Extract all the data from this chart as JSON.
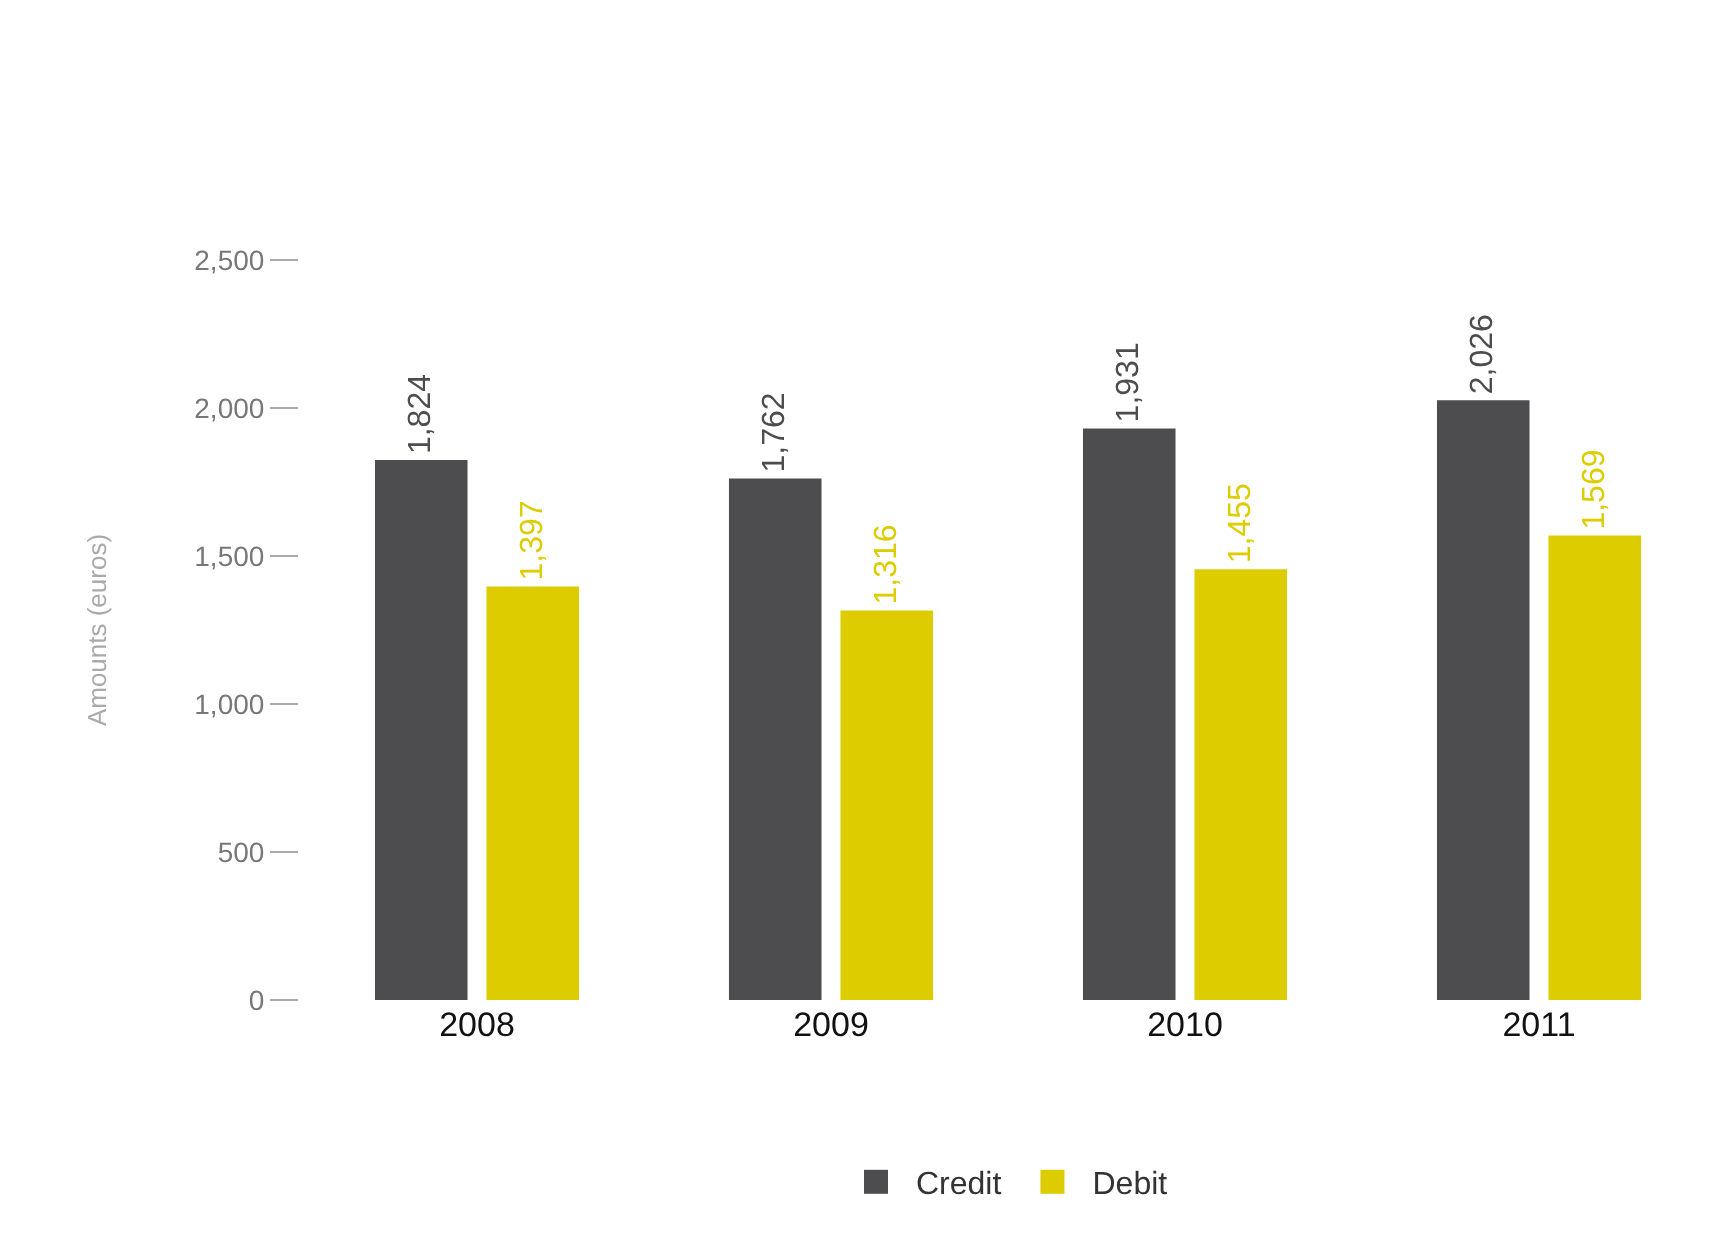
{
  "chart_data": {
    "type": "bar",
    "ylabel": "Amounts (euros)",
    "categories": [
      "2008",
      "2009",
      "2010",
      "2011"
    ],
    "series": [
      {
        "name": "Credit",
        "color": "#4d4d4f",
        "values": [
          1824,
          1762,
          1931,
          2026
        ],
        "value_labels": [
          "1,824",
          "1,762",
          "1,931",
          "2,026"
        ]
      },
      {
        "name": "Debit",
        "color": "#dccc00",
        "values": [
          1397,
          1316,
          1455,
          1569
        ],
        "value_labels": [
          "1,397",
          "1,316",
          "1,455",
          "1,569"
        ]
      }
    ],
    "ylim": [
      0,
      2500
    ],
    "yticks": [
      {
        "value": 0,
        "label": "0"
      },
      {
        "value": 500,
        "label": "500"
      },
      {
        "value": 1000,
        "label": "1,000"
      },
      {
        "value": 1500,
        "label": "1,500"
      },
      {
        "value": 2000,
        "label": "2,000"
      },
      {
        "value": 2500,
        "label": "2,500"
      }
    ],
    "grid": false,
    "legend": "bottom"
  }
}
